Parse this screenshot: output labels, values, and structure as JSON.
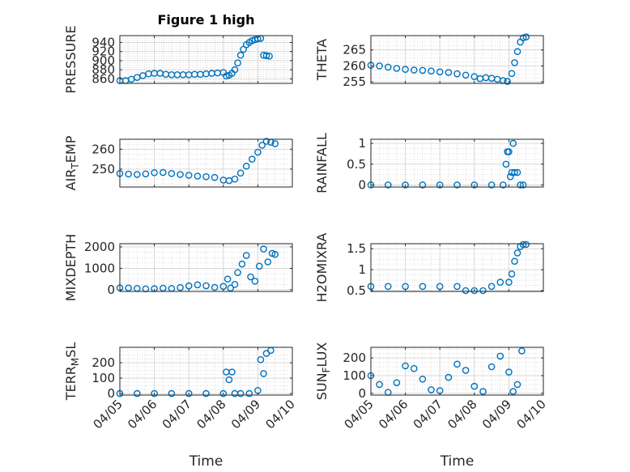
{
  "chart_data": [
    {
      "type": "scatter",
      "title": "Figure 1 high",
      "ylabel": "PRESSURE",
      "xlabel": "",
      "xlim": [
        "2015-04-05",
        "2015-04-10"
      ],
      "ylim": [
        850,
        955
      ],
      "yticks": [
        860,
        880,
        900,
        920,
        940
      ],
      "xtick_labels": [],
      "marker": "circle",
      "color": "#0072BD",
      "series": [
        {
          "x": [
            "2015-04-05T00:00",
            "2015-04-05T04:00",
            "2015-04-05T08:00",
            "2015-04-05T12:00",
            "2015-04-05T16:00",
            "2015-04-05T20:00",
            "2015-04-06T00:00",
            "2015-04-06T04:00",
            "2015-04-06T08:00",
            "2015-04-06T12:00",
            "2015-04-06T16:00",
            "2015-04-06T20:00",
            "2015-04-07T00:00",
            "2015-04-07T04:00",
            "2015-04-07T08:00",
            "2015-04-07T12:00",
            "2015-04-07T16:00",
            "2015-04-07T20:00",
            "2015-04-08T00:00",
            "2015-04-08T02:00",
            "2015-04-08T04:00",
            "2015-04-08T06:00",
            "2015-04-08T08:00",
            "2015-04-08T10:00",
            "2015-04-08T12:00",
            "2015-04-08T14:00",
            "2015-04-08T16:00",
            "2015-04-08T18:00",
            "2015-04-08T20:00",
            "2015-04-08T22:00",
            "2015-04-09T00:00",
            "2015-04-09T02:00",
            "2015-04-09T04:00",
            "2015-04-09T06:00",
            "2015-04-09T08:00"
          ],
          "y": [
            856,
            856,
            859,
            863,
            867,
            871,
            872,
            872,
            870,
            869,
            869,
            869,
            869,
            870,
            870,
            871,
            872,
            873,
            874,
            866,
            868,
            872,
            880,
            895,
            912,
            925,
            935,
            940,
            944,
            946,
            948,
            949,
            912,
            911,
            910
          ]
        }
      ]
    },
    {
      "type": "scatter",
      "title": "",
      "ylabel": "THETA",
      "xlabel": "",
      "xlim": [
        "2015-04-05",
        "2015-04-10"
      ],
      "ylim": [
        254.5,
        269.5
      ],
      "yticks": [
        255,
        260,
        265
      ],
      "xtick_labels": [],
      "marker": "circle",
      "color": "#0072BD",
      "series": [
        {
          "x": [
            "2015-04-05T00:00",
            "2015-04-05T06:00",
            "2015-04-05T12:00",
            "2015-04-05T18:00",
            "2015-04-06T00:00",
            "2015-04-06T06:00",
            "2015-04-06T12:00",
            "2015-04-06T18:00",
            "2015-04-07T00:00",
            "2015-04-07T06:00",
            "2015-04-07T12:00",
            "2015-04-07T18:00",
            "2015-04-08T00:00",
            "2015-04-08T04:00",
            "2015-04-08T08:00",
            "2015-04-08T12:00",
            "2015-04-08T16:00",
            "2015-04-08T20:00",
            "2015-04-08T23:00",
            "2015-04-09T02:00",
            "2015-04-09T04:00",
            "2015-04-09T06:00",
            "2015-04-09T08:00",
            "2015-04-09T10:00",
            "2015-04-09T12:00"
          ],
          "y": [
            260.2,
            260,
            259.6,
            259.2,
            258.9,
            258.7,
            258.6,
            258.4,
            258.1,
            257.9,
            257.5,
            257.1,
            256.6,
            256,
            256.3,
            256.1,
            255.8,
            255.4,
            255.1,
            257.6,
            261,
            264.5,
            267.5,
            268.8,
            269.1
          ]
        }
      ]
    },
    {
      "type": "scatter",
      "title": "",
      "ylabel": "AIR_TEMP",
      "xlabel": "",
      "xlim": [
        "2015-04-05",
        "2015-04-10"
      ],
      "ylim": [
        241,
        265
      ],
      "yticks": [
        250,
        260
      ],
      "xtick_labels": [],
      "marker": "circle",
      "color": "#0072BD",
      "series": [
        {
          "x": [
            "2015-04-05T00:00",
            "2015-04-05T06:00",
            "2015-04-05T12:00",
            "2015-04-05T18:00",
            "2015-04-06T00:00",
            "2015-04-06T06:00",
            "2015-04-06T12:00",
            "2015-04-06T18:00",
            "2015-04-07T00:00",
            "2015-04-07T06:00",
            "2015-04-07T12:00",
            "2015-04-07T18:00",
            "2015-04-08T00:00",
            "2015-04-08T04:00",
            "2015-04-08T08:00",
            "2015-04-08T12:00",
            "2015-04-08T16:00",
            "2015-04-08T20:00",
            "2015-04-09T00:00",
            "2015-04-09T03:00",
            "2015-04-09T06:00",
            "2015-04-09T09:00",
            "2015-04-09T12:00"
          ],
          "y": [
            247.8,
            247.5,
            247.3,
            247.6,
            248.2,
            248.3,
            247.8,
            247.3,
            246.9,
            246.5,
            246.2,
            245.8,
            244.5,
            244.2,
            245,
            248,
            251.5,
            255,
            258.5,
            262,
            264,
            263.5,
            262.8
          ]
        }
      ]
    },
    {
      "type": "scatter",
      "title": "",
      "ylabel": "RAINFALL",
      "xlabel": "",
      "xlim": [
        "2015-04-05",
        "2015-04-10"
      ],
      "ylim": [
        -0.05,
        1.1
      ],
      "yticks": [
        0,
        0.5,
        1
      ],
      "xtick_labels": [],
      "marker": "circle",
      "color": "#0072BD",
      "series": [
        {
          "x": [
            "2015-04-05T00:00",
            "2015-04-05T12:00",
            "2015-04-06T00:00",
            "2015-04-06T12:00",
            "2015-04-07T00:00",
            "2015-04-07T12:00",
            "2015-04-08T00:00",
            "2015-04-08T12:00",
            "2015-04-08T20:00",
            "2015-04-08T22:00",
            "2015-04-08T23:00",
            "2015-04-09T00:00",
            "2015-04-09T01:00",
            "2015-04-09T02:00",
            "2015-04-09T03:00",
            "2015-04-09T04:00",
            "2015-04-09T06:00",
            "2015-04-09T08:00",
            "2015-04-09T10:00"
          ],
          "y": [
            0,
            0,
            0,
            0,
            0,
            0,
            0,
            0,
            0,
            0.5,
            0.8,
            0.8,
            0.2,
            0.3,
            1,
            0.3,
            0.3,
            0,
            0
          ]
        }
      ]
    },
    {
      "type": "scatter",
      "title": "",
      "ylabel": "MIXDEPTH",
      "xlabel": "",
      "xlim": [
        "2015-04-05",
        "2015-04-10"
      ],
      "ylim": [
        -80,
        2150
      ],
      "yticks": [
        0,
        1000,
        2000
      ],
      "xtick_labels": [],
      "marker": "circle",
      "color": "#0072BD",
      "series": [
        {
          "x": [
            "2015-04-05T00:00",
            "2015-04-05T06:00",
            "2015-04-05T12:00",
            "2015-04-05T18:00",
            "2015-04-06T00:00",
            "2015-04-06T06:00",
            "2015-04-06T12:00",
            "2015-04-06T18:00",
            "2015-04-07T00:00",
            "2015-04-07T06:00",
            "2015-04-07T12:00",
            "2015-04-07T18:00",
            "2015-04-08T00:00",
            "2015-04-08T03:00",
            "2015-04-08T05:00",
            "2015-04-08T08:00",
            "2015-04-08T10:00",
            "2015-04-08T13:00",
            "2015-04-08T16:00",
            "2015-04-08T19:00",
            "2015-04-08T22:00",
            "2015-04-09T01:00",
            "2015-04-09T04:00",
            "2015-04-09T07:00",
            "2015-04-09T10:00",
            "2015-04-09T12:00"
          ],
          "y": [
            90,
            80,
            60,
            40,
            50,
            70,
            60,
            100,
            180,
            230,
            190,
            110,
            160,
            500,
            80,
            250,
            800,
            1200,
            1600,
            600,
            400,
            1100,
            1900,
            1300,
            1700,
            1650
          ]
        }
      ]
    },
    {
      "type": "scatter",
      "title": "",
      "ylabel": "H2OMIXRA",
      "xlabel": "",
      "xlim": [
        "2015-04-05",
        "2015-04-10"
      ],
      "ylim": [
        0.48,
        1.62
      ],
      "yticks": [
        0.5,
        1,
        1.5
      ],
      "xtick_labels": [],
      "marker": "circle",
      "color": "#0072BD",
      "series": [
        {
          "x": [
            "2015-04-05T00:00",
            "2015-04-05T12:00",
            "2015-04-06T00:00",
            "2015-04-06T12:00",
            "2015-04-07T00:00",
            "2015-04-07T12:00",
            "2015-04-07T18:00",
            "2015-04-08T00:00",
            "2015-04-08T06:00",
            "2015-04-08T12:00",
            "2015-04-08T18:00",
            "2015-04-09T00:00",
            "2015-04-09T02:00",
            "2015-04-09T04:00",
            "2015-04-09T06:00",
            "2015-04-09T08:00",
            "2015-04-09T10:00",
            "2015-04-09T12:00"
          ],
          "y": [
            0.6,
            0.6,
            0.6,
            0.6,
            0.6,
            0.6,
            0.5,
            0.5,
            0.5,
            0.6,
            0.7,
            0.7,
            0.9,
            1.2,
            1.4,
            1.55,
            1.6,
            1.6
          ]
        }
      ]
    },
    {
      "type": "scatter",
      "title": "",
      "ylabel": "TERR_MSL",
      "xlabel": "Time",
      "xlim": [
        "2015-04-05",
        "2015-04-10"
      ],
      "ylim": [
        -10,
        300
      ],
      "yticks": [
        0,
        100,
        200
      ],
      "xtick_labels": [
        "04/05",
        "04/06",
        "04/07",
        "04/08",
        "04/09",
        "04/10"
      ],
      "marker": "circle",
      "color": "#0072BD",
      "series": [
        {
          "x": [
            "2015-04-05T00:00",
            "2015-04-05T12:00",
            "2015-04-06T00:00",
            "2015-04-06T12:00",
            "2015-04-07T00:00",
            "2015-04-07T12:00",
            "2015-04-08T00:00",
            "2015-04-08T02:00",
            "2015-04-08T04:00",
            "2015-04-08T06:00",
            "2015-04-08T08:00",
            "2015-04-08T12:00",
            "2015-04-08T18:00",
            "2015-04-09T00:00",
            "2015-04-09T02:00",
            "2015-04-09T04:00",
            "2015-04-09T06:00",
            "2015-04-09T09:00"
          ],
          "y": [
            0,
            0,
            0,
            0,
            0,
            0,
            0,
            140,
            90,
            140,
            0,
            0,
            0,
            20,
            220,
            130,
            260,
            280
          ]
        }
      ]
    },
    {
      "type": "scatter",
      "title": "",
      "ylabel": "SUN_FLUX",
      "xlabel": "Time",
      "xlim": [
        "2015-04-05",
        "2015-04-10"
      ],
      "ylim": [
        -10,
        260
      ],
      "yticks": [
        0,
        100,
        200
      ],
      "xtick_labels": [
        "04/05",
        "04/06",
        "04/07",
        "04/08",
        "04/09",
        "04/10"
      ],
      "marker": "circle",
      "color": "#0072BD",
      "series": [
        {
          "x": [
            "2015-04-05T00:00",
            "2015-04-05T06:00",
            "2015-04-05T12:00",
            "2015-04-05T18:00",
            "2015-04-06T00:00",
            "2015-04-06T06:00",
            "2015-04-06T12:00",
            "2015-04-06T18:00",
            "2015-04-07T00:00",
            "2015-04-07T06:00",
            "2015-04-07T12:00",
            "2015-04-07T18:00",
            "2015-04-08T00:00",
            "2015-04-08T06:00",
            "2015-04-08T12:00",
            "2015-04-08T18:00",
            "2015-04-09T00:00",
            "2015-04-09T03:00",
            "2015-04-09T06:00",
            "2015-04-09T09:00"
          ],
          "y": [
            100,
            50,
            5,
            60,
            155,
            140,
            80,
            20,
            15,
            90,
            165,
            130,
            40,
            10,
            150,
            210,
            120,
            10,
            50,
            240
          ]
        }
      ]
    }
  ]
}
